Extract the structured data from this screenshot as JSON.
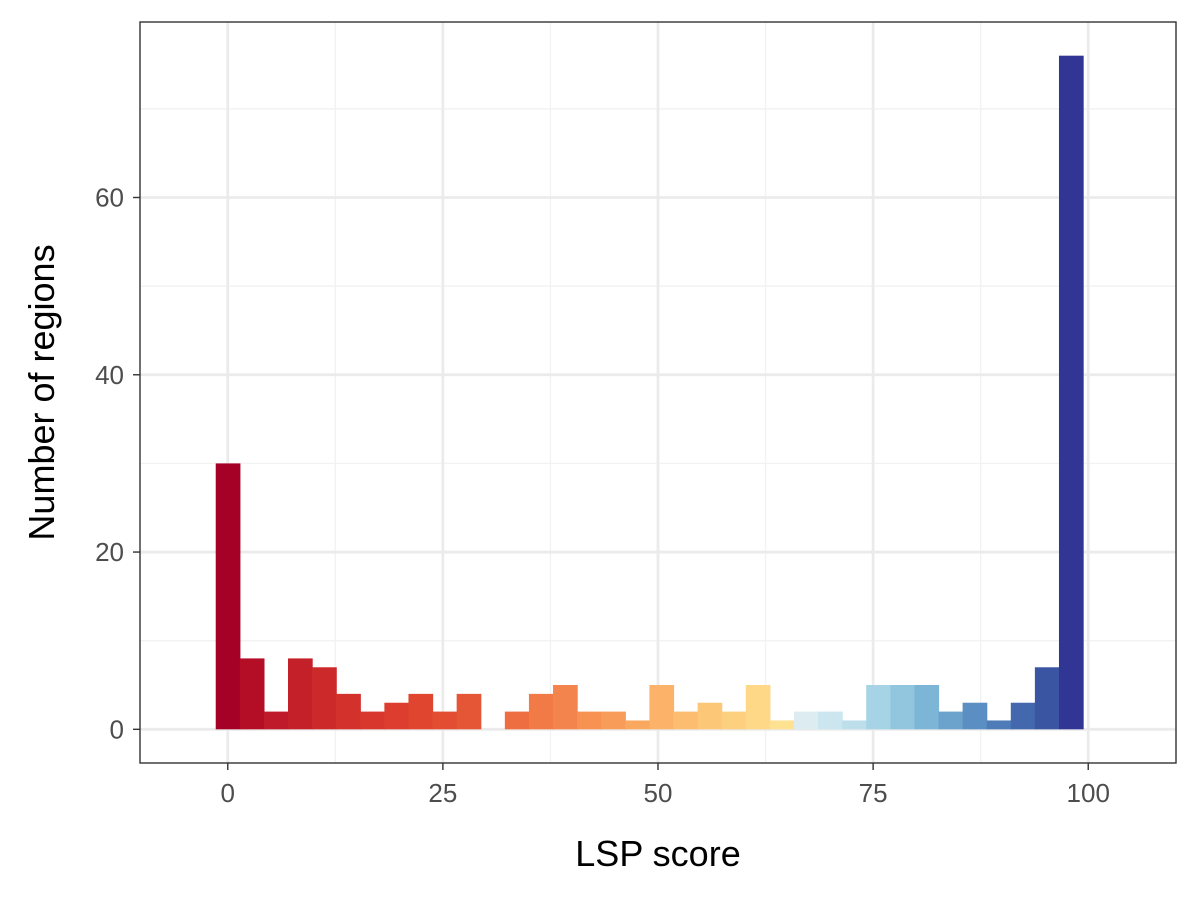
{
  "chart_data": {
    "type": "bar",
    "title": "",
    "xlabel": "LSP score",
    "ylabel": "Number of regions",
    "xlim": [
      -10.2,
      110.2
    ],
    "ylim": [
      -3.8,
      79.8
    ],
    "x_ticks": [
      "0",
      "25",
      "50",
      "75",
      "100"
    ],
    "x_tick_values": [
      0,
      25,
      50,
      75,
      100
    ],
    "y_ticks": [
      "0",
      "20",
      "40",
      "60"
    ],
    "y_tick_values": [
      0,
      20,
      40,
      60
    ],
    "y_minor_grid": [
      10,
      30,
      50,
      70
    ],
    "x_minor_grid": [
      12.5,
      37.5,
      62.5,
      87.5
    ],
    "grid": true,
    "legend": "none",
    "bin_width": 2.8,
    "bins": [
      {
        "x": 0.0,
        "count": 30,
        "color": "#a50026"
      },
      {
        "x": 2.8,
        "count": 8,
        "color": "#b40e27"
      },
      {
        "x": 5.6,
        "count": 2,
        "color": "#be1a29"
      },
      {
        "x": 8.4,
        "count": 8,
        "color": "#c42029"
      },
      {
        "x": 11.2,
        "count": 7,
        "color": "#cc2a2a"
      },
      {
        "x": 14.0,
        "count": 4,
        "color": "#d3322c"
      },
      {
        "x": 16.8,
        "count": 2,
        "color": "#d8372d"
      },
      {
        "x": 19.6,
        "count": 3,
        "color": "#dd3d2e"
      },
      {
        "x": 22.4,
        "count": 4,
        "color": "#e04530"
      },
      {
        "x": 25.2,
        "count": 2,
        "color": "#e34e33"
      },
      {
        "x": 28.0,
        "count": 4,
        "color": "#e55636"
      },
      {
        "x": 30.8,
        "count": 0,
        "color": "#ea633b"
      },
      {
        "x": 33.6,
        "count": 2,
        "color": "#ee6e41"
      },
      {
        "x": 36.4,
        "count": 4,
        "color": "#f27a47"
      },
      {
        "x": 39.2,
        "count": 5,
        "color": "#f4844d"
      },
      {
        "x": 42.0,
        "count": 2,
        "color": "#f79253"
      },
      {
        "x": 44.8,
        "count": 2,
        "color": "#f89d59"
      },
      {
        "x": 47.6,
        "count": 1,
        "color": "#faa860"
      },
      {
        "x": 50.4,
        "count": 5,
        "color": "#fcb268"
      },
      {
        "x": 53.2,
        "count": 2,
        "color": "#fcbd70"
      },
      {
        "x": 56.0,
        "count": 3,
        "color": "#fdc778"
      },
      {
        "x": 58.8,
        "count": 2,
        "color": "#fdd080"
      },
      {
        "x": 61.6,
        "count": 5,
        "color": "#fed887"
      },
      {
        "x": 64.4,
        "count": 1,
        "color": "#fee191"
      },
      {
        "x": 67.2,
        "count": 2,
        "color": "#dcecf0"
      },
      {
        "x": 70.0,
        "count": 2,
        "color": "#cbe6ef"
      },
      {
        "x": 72.8,
        "count": 1,
        "color": "#bcdfeb"
      },
      {
        "x": 75.6,
        "count": 5,
        "color": "#a6d3e5"
      },
      {
        "x": 78.4,
        "count": 5,
        "color": "#92c5de"
      },
      {
        "x": 81.2,
        "count": 5,
        "color": "#7db5d6"
      },
      {
        "x": 84.0,
        "count": 2,
        "color": "#6ba3cd"
      },
      {
        "x": 86.8,
        "count": 3,
        "color": "#5b8fc3"
      },
      {
        "x": 89.6,
        "count": 1,
        "color": "#4d7cb8"
      },
      {
        "x": 92.4,
        "count": 3,
        "color": "#4468ad"
      },
      {
        "x": 95.2,
        "count": 7,
        "color": "#3a55a2"
      },
      {
        "x": 98.0,
        "count": 76,
        "color": "#313695"
      }
    ]
  },
  "colors": {
    "panel_border": "#333333",
    "grid_major": "#ebebeb",
    "grid_minor": "#f2f2f2",
    "tick_text": "#4d4d4d",
    "tick_mark": "#333333",
    "axis_title": "#000000"
  }
}
